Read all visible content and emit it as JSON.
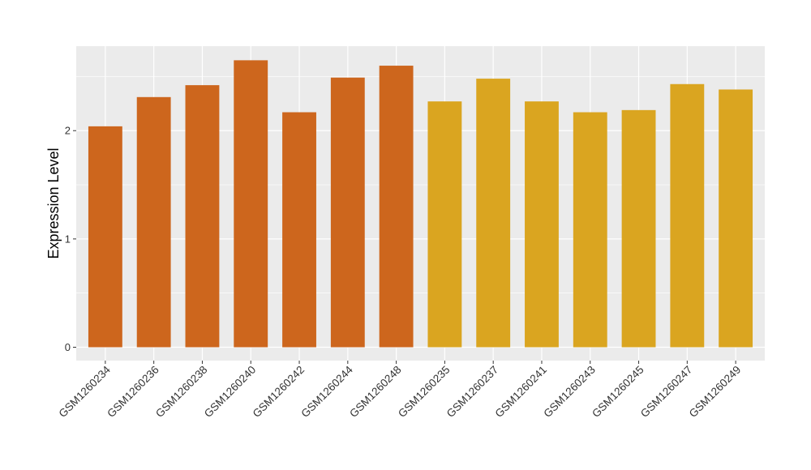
{
  "chart_data": {
    "type": "bar",
    "ylabel": "Expression Level",
    "xlabel": "",
    "ylim": [
      0,
      2.78
    ],
    "yticks": [
      0,
      1,
      2
    ],
    "grid": true,
    "legend": "none",
    "colors": {
      "group_1": "#CD661D",
      "group_2": "#DAA520",
      "panel": "#EBEBEB",
      "grid": "#FFFFFF"
    },
    "categories": [
      "GSM1260234",
      "GSM1260236",
      "GSM1260238",
      "GSM1260240",
      "GSM1260242",
      "GSM1260244",
      "GSM1260248",
      "GSM1260235",
      "GSM1260237",
      "GSM1260241",
      "GSM1260243",
      "GSM1260245",
      "GSM1260247",
      "GSM1260249"
    ],
    "values": [
      2.04,
      2.31,
      2.42,
      2.65,
      2.17,
      2.49,
      2.6,
      2.27,
      2.48,
      2.27,
      2.17,
      2.19,
      2.43,
      2.38
    ],
    "groups": [
      1,
      1,
      1,
      1,
      1,
      1,
      1,
      2,
      2,
      2,
      2,
      2,
      2,
      2
    ]
  }
}
